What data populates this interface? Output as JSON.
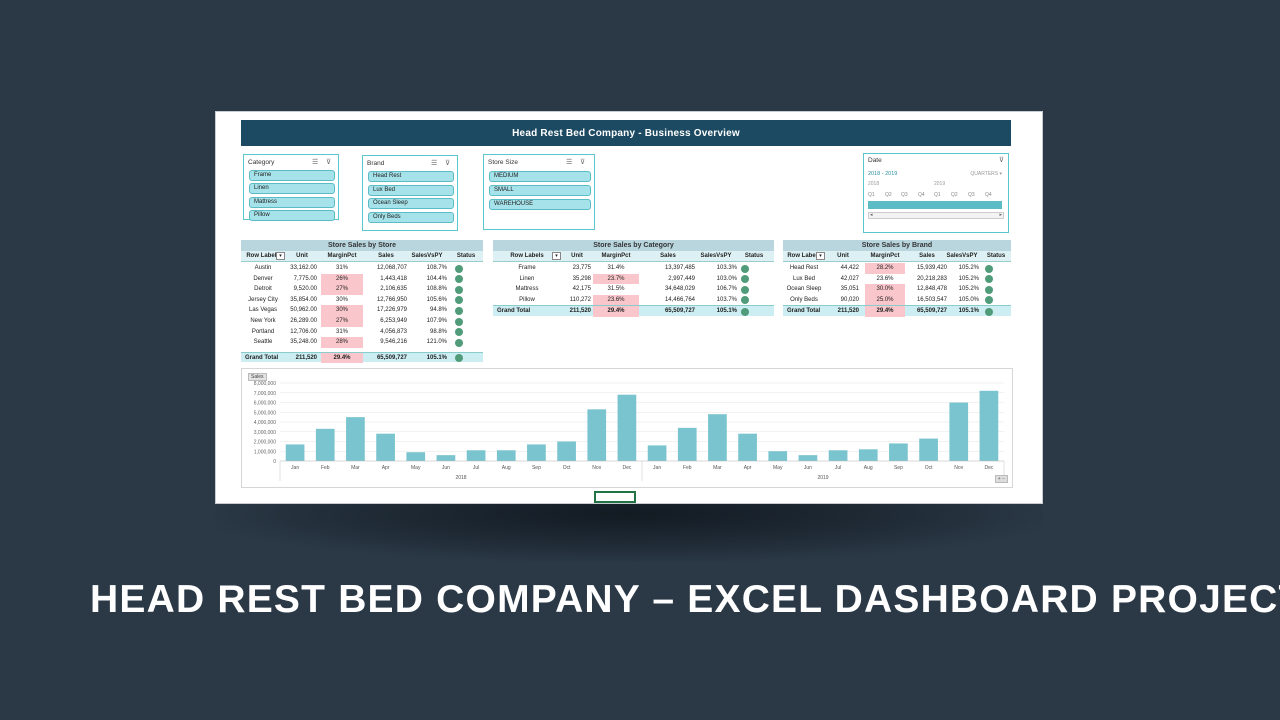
{
  "banner": "Head Rest Bed Company - Business Overview",
  "headline": "HEAD REST BED COMPANY – EXCEL DASHBOARD PROJECT",
  "colors": {
    "page_bg": "#2b3947",
    "banner": "#1d4a63",
    "slicer_item": "#a5e2ea",
    "highlight": "#f8c6cb",
    "status_dot": "#4f9b7a",
    "bar": "#79c4cf"
  },
  "slicers": {
    "category": {
      "title": "Category",
      "items": [
        "Frame",
        "Linen",
        "Mattress",
        "Pillow"
      ]
    },
    "brand": {
      "title": "Brand",
      "items": [
        "Head Rest",
        "Lux Bed",
        "Ocean Sleep",
        "Only Beds"
      ]
    },
    "store_size": {
      "title": "Store Size",
      "items": [
        "MEDIUM",
        "SMALL",
        "WAREHOUSE"
      ]
    }
  },
  "timeline": {
    "title": "Date",
    "selection": "2018 - 2019",
    "level": "QUARTERS ▾",
    "years": [
      "2018",
      "2019"
    ],
    "quarters": [
      "Q1",
      "Q2",
      "Q3",
      "Q4",
      "Q1",
      "Q2",
      "Q3",
      "Q4"
    ]
  },
  "pivots": {
    "store": {
      "title": "Store Sales by Store",
      "headers": [
        "Row Labels",
        "Unit",
        "MarginPct",
        "Sales",
        "SalesVsPY",
        "Status"
      ],
      "rows": [
        [
          "Austin",
          "33,162.00",
          "31%",
          "12,068,707",
          "108.7%"
        ],
        [
          "Denver",
          "7,775.00",
          "26%",
          "1,443,418",
          "104.4%"
        ],
        [
          "Detroit",
          "9,520.00",
          "27%",
          "2,106,635",
          "108.8%"
        ],
        [
          "Jersey City",
          "35,854.00",
          "30%",
          "12,766,950",
          "105.6%"
        ],
        [
          "Las Vegas",
          "50,962.00",
          "30%",
          "17,226,979",
          "94.8%"
        ],
        [
          "New York",
          "26,289.00",
          "27%",
          "6,253,949",
          "107.9%"
        ],
        [
          "Portland",
          "12,706.00",
          "31%",
          "4,056,873",
          "98.8%"
        ],
        [
          "Seattle",
          "35,248.00",
          "28%",
          "9,546,216",
          "121.0%"
        ]
      ],
      "highlight": [
        false,
        true,
        true,
        false,
        true,
        true,
        false,
        true
      ],
      "total": [
        "Grand Total",
        "211,520",
        "29.4%",
        "65,509,727",
        "105.1%"
      ]
    },
    "category": {
      "title": "Store Sales by Category",
      "headers": [
        "Row Labels",
        "Unit",
        "MarginPct",
        "Sales",
        "SalesVsPY",
        "Status"
      ],
      "rows": [
        [
          "Frame",
          "23,775",
          "31.4%",
          "13,397,485",
          "103.3%"
        ],
        [
          "Linen",
          "35,298",
          "23.7%",
          "2,997,449",
          "103.0%"
        ],
        [
          "Mattress",
          "42,175",
          "31.5%",
          "34,648,029",
          "106.7%"
        ],
        [
          "Pillow",
          "110,272",
          "23.6%",
          "14,466,764",
          "103.7%"
        ]
      ],
      "highlight": [
        false,
        true,
        false,
        true
      ],
      "total": [
        "Grand Total",
        "211,520",
        "29.4%",
        "65,509,727",
        "105.1%"
      ]
    },
    "brand": {
      "title": "Store Sales by Brand",
      "headers": [
        "Row Labels",
        "Unit",
        "MarginPct",
        "Sales",
        "SalesVsPY",
        "Status"
      ],
      "rows": [
        [
          "Head Rest",
          "44,422",
          "28.2%",
          "15,939,420",
          "105.2%"
        ],
        [
          "Lux Bed",
          "42,027",
          "23.6%",
          "20,218,283",
          "105.2%"
        ],
        [
          "Ocean Sleep",
          "35,051",
          "30.0%",
          "12,848,478",
          "105.2%"
        ],
        [
          "Only Beds",
          "90,020",
          "25.0%",
          "16,503,547",
          "105.0%"
        ]
      ],
      "highlight": [
        true,
        false,
        true,
        true
      ],
      "total": [
        "Grand Total",
        "211,520",
        "29.4%",
        "65,509,727",
        "105.1%"
      ]
    }
  },
  "chart_tag": "Sales",
  "chart_data": {
    "type": "bar",
    "categories": [
      "Jan",
      "Feb",
      "Mar",
      "Apr",
      "May",
      "Jun",
      "Jul",
      "Aug",
      "Sep",
      "Oct",
      "Nov",
      "Dec",
      "Jan",
      "Feb",
      "Mar",
      "Apr",
      "May",
      "Jun",
      "Jul",
      "Aug",
      "Sep",
      "Oct",
      "Nov",
      "Dec"
    ],
    "groups": [
      {
        "label": "2018",
        "from": 0,
        "to": 11
      },
      {
        "label": "2019",
        "from": 12,
        "to": 23
      }
    ],
    "series": [
      {
        "values": [
          1700000,
          3300000,
          4500000,
          2800000,
          900000,
          600000,
          1100000,
          1100000,
          1700000,
          2000000,
          5300000,
          6800000,
          1600000,
          3400000,
          4800000,
          2800000,
          1000000,
          600000,
          1100000,
          1200000,
          1800000,
          2300000,
          6000000,
          7200000
        ]
      }
    ],
    "yticks": [
      0,
      1000000,
      2000000,
      3000000,
      4000000,
      5000000,
      6000000,
      7000000,
      8000000
    ],
    "ytick_labels": [
      "0",
      "1,000,000",
      "2,000,000",
      "3,000,000",
      "4,000,000",
      "5,000,000",
      "6,000,000",
      "7,000,000",
      "8,000,000"
    ],
    "ylim": [
      0,
      8000000
    ],
    "grid": true
  }
}
